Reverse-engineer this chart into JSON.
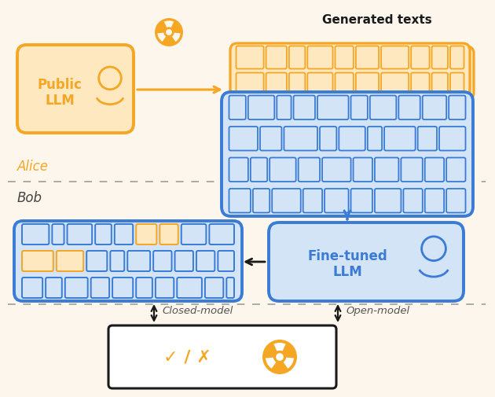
{
  "bg_color": "#fdf6ec",
  "orange": "#f5a623",
  "orange_fill": "#fde8c0",
  "blue": "#3a7bd5",
  "blue_fill": "#d4e4f7",
  "dark": "#1a1a1a",
  "white": "#ffffff",
  "gray_text": "#555555",
  "public_llm_label": "Public\nLLM",
  "fine_tuned_label": "Fine-tuned\nLLM",
  "title": "Generated texts",
  "alice_label": "Alice",
  "bob_label": "Bob",
  "closed_model_label": "Closed-model",
  "open_model_label": "Open-model",
  "check_label": "✓ / ✗"
}
